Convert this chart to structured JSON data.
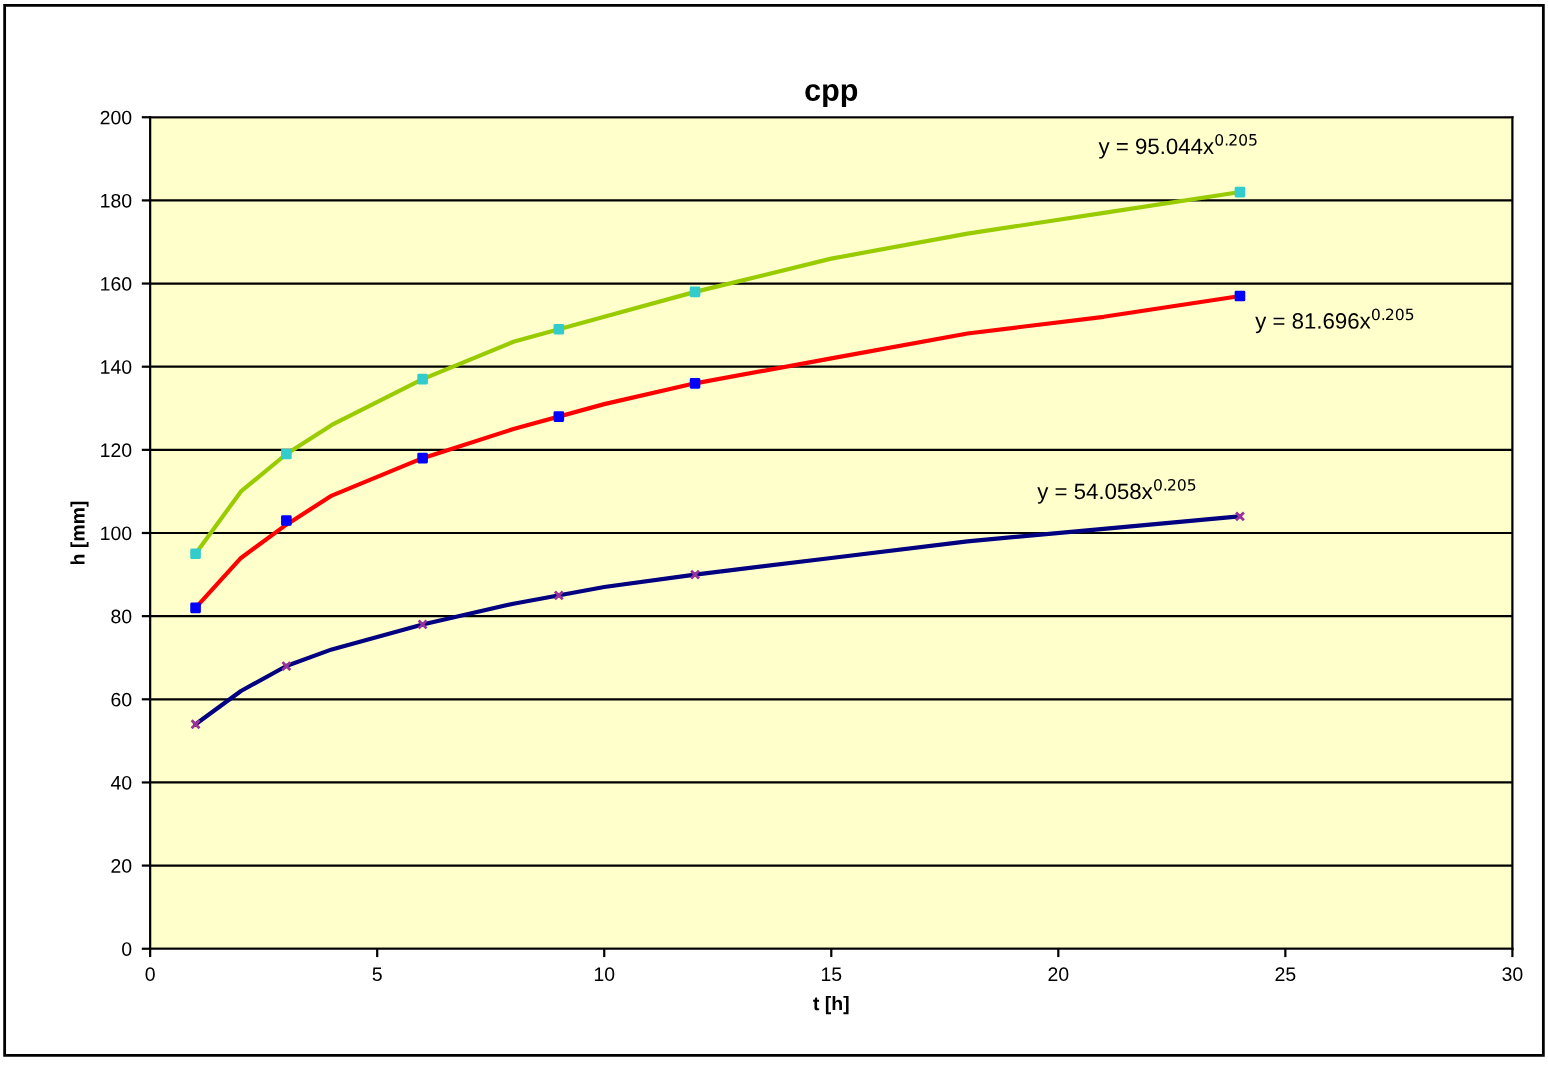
{
  "chart_data": {
    "type": "scatter",
    "title": "cpp",
    "xlabel": "t [h]",
    "ylabel": "h [mm]",
    "xlim": [
      0,
      30
    ],
    "xticks": [
      0,
      5,
      10,
      15,
      20,
      25,
      30
    ],
    "ylim": [
      0,
      200
    ],
    "yticks": [
      0,
      20,
      40,
      60,
      80,
      100,
      120,
      140,
      160,
      180,
      200
    ],
    "grid": "y",
    "legend": false,
    "series": [
      {
        "type": "line",
        "color": "#99cc00",
        "marker": "none",
        "x": [
          1,
          2,
          3,
          4,
          6,
          8,
          10,
          12,
          15,
          18,
          21,
          24
        ],
        "values": [
          95,
          110,
          119,
          126,
          137,
          146,
          152,
          158,
          166,
          172,
          177,
          182
        ]
      },
      {
        "type": "line",
        "color": "#ff0000",
        "marker": "none",
        "x": [
          1,
          2,
          3,
          4,
          6,
          8,
          10,
          12,
          15,
          18,
          21,
          24
        ],
        "values": [
          82,
          94,
          102,
          109,
          118,
          125,
          131,
          136,
          142,
          148,
          152,
          157
        ]
      },
      {
        "type": "line",
        "color": "#000080",
        "marker": "none",
        "x": [
          1,
          2,
          3,
          4,
          6,
          8,
          10,
          12,
          15,
          18,
          21,
          24
        ],
        "values": [
          54,
          62,
          68,
          72,
          78,
          83,
          87,
          90,
          94,
          98,
          101,
          104
        ]
      },
      {
        "color": "#33cccc",
        "marker": "square",
        "x": [
          1,
          3,
          6,
          9,
          12,
          24
        ],
        "values": [
          95,
          119,
          137,
          149,
          158,
          182
        ]
      },
      {
        "color": "#0000ff",
        "marker": "square",
        "x": [
          1,
          3,
          6,
          9,
          12,
          24
        ],
        "values": [
          82,
          103,
          118,
          128,
          136,
          157
        ]
      },
      {
        "color": "#993399",
        "marker": "cross",
        "x": [
          1,
          3,
          6,
          9,
          12,
          24
        ],
        "values": [
          54,
          68,
          78,
          85,
          90,
          104
        ]
      }
    ],
    "annotations": [
      "y = 95.044x$^{0.205}$",
      "y = 81.696x$^{0.205}$",
      "y = 54.058x$^{0.205}$"
    ]
  }
}
